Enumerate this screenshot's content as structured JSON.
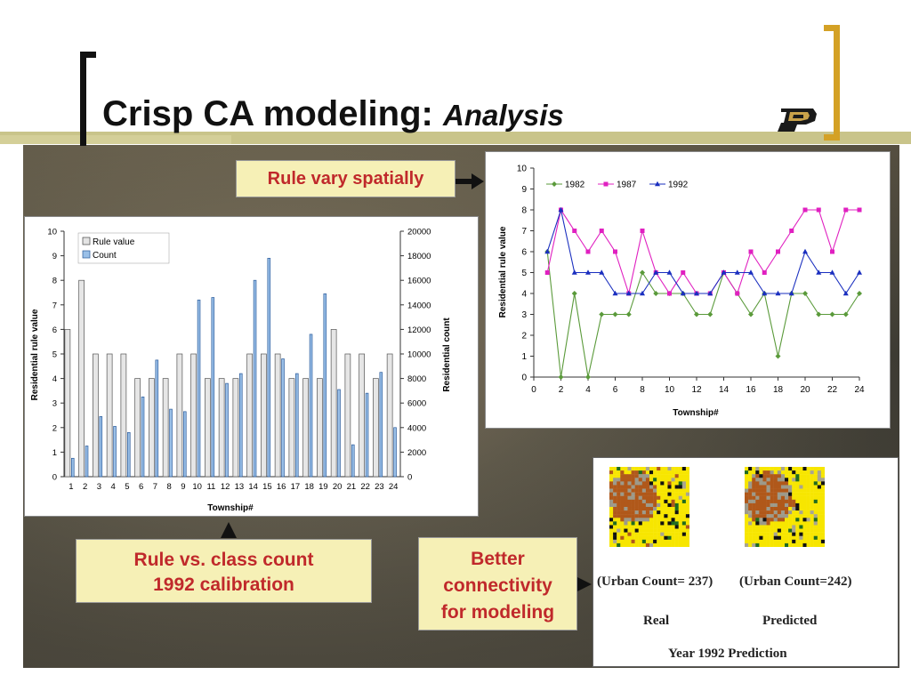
{
  "title": {
    "main": "Crisp CA modeling:",
    "emphasis": "Analysis"
  },
  "callouts": {
    "spatial": "Rule vary spatially",
    "calibration_line1": "Rule vs. class count",
    "calibration_line2": "1992 calibration",
    "connectivity_line1": "Better",
    "connectivity_line2": "connectivity",
    "connectivity_line3": "for modeling"
  },
  "prediction_panel": {
    "real_count": "(Urban Count= 237)",
    "pred_count": "(Urban Count=242)",
    "real_label": "Real",
    "pred_label": "Predicted",
    "caption": "Year 1992 Prediction"
  },
  "colors": {
    "accent_gold": "#d4a125",
    "callout_text": "#c0292b",
    "callout_bg": "#f6f0b6"
  },
  "chart_data": [
    {
      "type": "bar",
      "xlabel": "Township#",
      "ylabel": "Residential rule value",
      "y2label": "Residential count",
      "ylim": [
        0,
        10
      ],
      "y2lim": [
        0,
        20000
      ],
      "yticks": [
        "0",
        "1",
        "2",
        "3",
        "4",
        "5",
        "6",
        "7",
        "8",
        "9",
        "10"
      ],
      "y2ticks": [
        "0",
        "2000",
        "4000",
        "6000",
        "8000",
        "10000",
        "12000",
        "14000",
        "16000",
        "18000",
        "20000"
      ],
      "legend": [
        "Rule value",
        "Count"
      ],
      "legend_position": "top-left",
      "categories": [
        "1",
        "2",
        "3",
        "4",
        "5",
        "6",
        "7",
        "8",
        "9",
        "10",
        "11",
        "12",
        "13",
        "14",
        "15",
        "16",
        "17",
        "18",
        "19",
        "20",
        "21",
        "22",
        "23",
        "24"
      ],
      "series": [
        {
          "name": "Rule value",
          "axis": "left",
          "values": [
            6,
            8,
            5,
            5,
            5,
            4,
            4,
            4,
            5,
            5,
            4,
            4,
            4,
            5,
            5,
            5,
            4,
            4,
            4,
            6,
            5,
            5,
            4,
            5
          ]
        },
        {
          "name": "Count",
          "axis": "right",
          "values": [
            1500,
            2500,
            4900,
            4100,
            3600,
            6500,
            9500,
            5500,
            5300,
            14400,
            14600,
            7600,
            8400,
            16000,
            17800,
            9600,
            8400,
            11600,
            14900,
            7100,
            2600,
            6800,
            8500,
            4000
          ]
        }
      ]
    },
    {
      "type": "line",
      "xlabel": "Township#",
      "ylabel": "Residential rule value",
      "ylim": [
        0,
        10
      ],
      "xlim": [
        0,
        24
      ],
      "yticks": [
        "0",
        "1",
        "2",
        "3",
        "4",
        "5",
        "6",
        "7",
        "8",
        "9",
        "10"
      ],
      "xticks": [
        "0",
        "2",
        "4",
        "6",
        "8",
        "10",
        "12",
        "14",
        "16",
        "18",
        "20",
        "22",
        "24"
      ],
      "legend_position": "top-left",
      "x": [
        1,
        2,
        3,
        4,
        5,
        6,
        7,
        8,
        9,
        10,
        11,
        12,
        13,
        14,
        15,
        16,
        17,
        18,
        19,
        20,
        21,
        22,
        23,
        24
      ],
      "series": [
        {
          "name": "1982",
          "color": "#5a9a3a",
          "values": [
            6,
            0,
            4,
            0,
            3,
            3,
            3,
            5,
            4,
            4,
            4,
            3,
            3,
            5,
            4,
            3,
            4,
            1,
            4,
            4,
            3,
            3,
            3,
            4
          ]
        },
        {
          "name": "1987",
          "color": "#e020c0",
          "values": [
            5,
            8,
            7,
            6,
            7,
            6,
            4,
            7,
            5,
            4,
            5,
            4,
            4,
            5,
            4,
            6,
            5,
            6,
            7,
            8,
            8,
            6,
            8,
            8
          ]
        },
        {
          "name": "1992",
          "color": "#1a2fbf",
          "values": [
            6,
            8,
            5,
            5,
            5,
            4,
            4,
            4,
            5,
            5,
            4,
            4,
            4,
            5,
            5,
            5,
            4,
            4,
            4,
            6,
            5,
            5,
            4,
            5
          ]
        }
      ]
    }
  ]
}
